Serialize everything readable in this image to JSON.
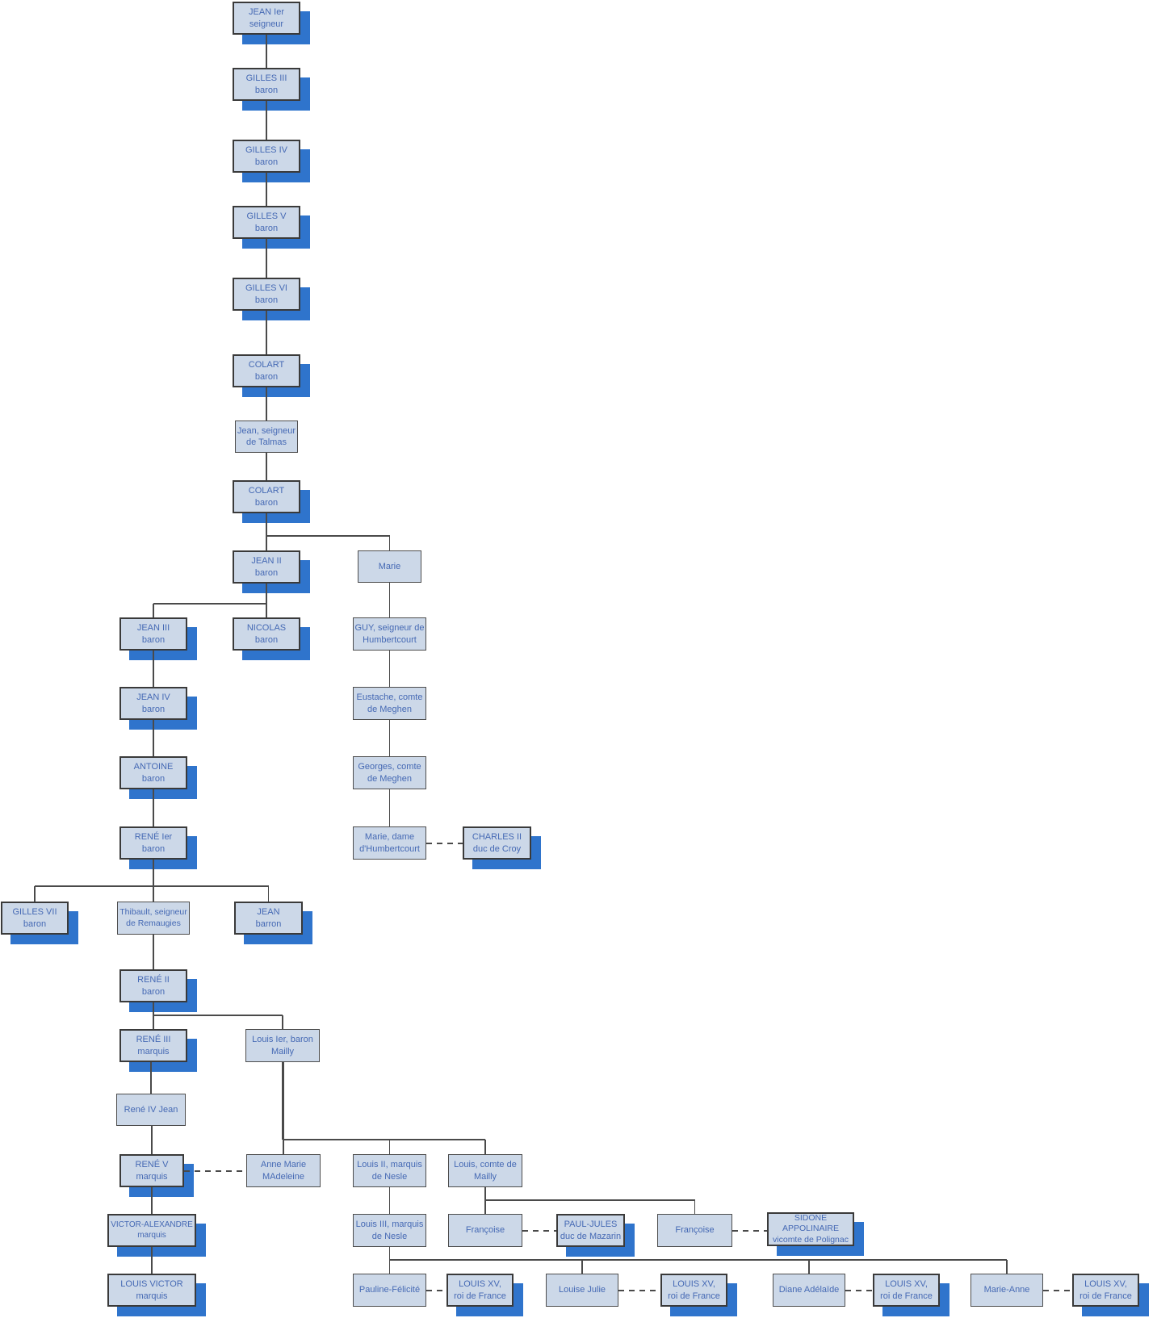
{
  "diagram": {
    "type": "family-tree",
    "colors": {
      "box_fill": "#ccd8e8",
      "box_border": "#3a3a3a",
      "text": "#4569b4",
      "shadow_blue": "#2f74cc",
      "connector": "#4a4a4a",
      "background": "#ffffff"
    },
    "nodes": [
      {
        "id": "jean1",
        "label": "JEAN Ier\nseigneur",
        "shadow": true
      },
      {
        "id": "gilles3",
        "label": "GILLES III\nbaron",
        "shadow": true
      },
      {
        "id": "gilles4",
        "label": "GILLES IV\nbaron",
        "shadow": true
      },
      {
        "id": "gilles5",
        "label": "GILLES V\nbaron",
        "shadow": true
      },
      {
        "id": "gilles6",
        "label": "GILLES VI\nbaron",
        "shadow": true
      },
      {
        "id": "colart1",
        "label": "COLART\nbaron",
        "shadow": true
      },
      {
        "id": "jeantalmas",
        "label": "Jean, seigneur\nde Talmas",
        "shadow": false
      },
      {
        "id": "colart2",
        "label": "COLART\nbaron",
        "shadow": true
      },
      {
        "id": "jean2",
        "label": "JEAN II\nbaron",
        "shadow": true
      },
      {
        "id": "marie",
        "label": "Marie",
        "shadow": false
      },
      {
        "id": "jean3",
        "label": "JEAN III\nbaron",
        "shadow": true
      },
      {
        "id": "nicolas",
        "label": "NICOLAS\nbaron",
        "shadow": true
      },
      {
        "id": "guy",
        "label": "GUY, seigneur de\nHumbertcourt",
        "shadow": false
      },
      {
        "id": "jean4",
        "label": "JEAN IV\nbaron",
        "shadow": true
      },
      {
        "id": "eustache",
        "label": "Eustache, comte\nde Meghen",
        "shadow": false
      },
      {
        "id": "antoine",
        "label": "ANTOINE\nbaron",
        "shadow": true
      },
      {
        "id": "georges",
        "label": "Georges, comte\nde Meghen",
        "shadow": false
      },
      {
        "id": "rene1",
        "label": "RENÉ Ier\nbaron",
        "shadow": true
      },
      {
        "id": "mariedame",
        "label": "Marie, dame\nd'Humbertcourt",
        "shadow": false
      },
      {
        "id": "charles2",
        "label": "CHARLES II\nduc de Croy",
        "shadow": true
      },
      {
        "id": "gilles7",
        "label": "GILLES VII\nbaron",
        "shadow": true
      },
      {
        "id": "thibault",
        "label": "Thibault, seigneur\nde Remaugies",
        "shadow": false
      },
      {
        "id": "jeanbarron",
        "label": "JEAN\nbarron",
        "shadow": true
      },
      {
        "id": "rene2",
        "label": "RENÉ II\nbaron",
        "shadow": true
      },
      {
        "id": "rene3",
        "label": "RENÉ III\nmarquis",
        "shadow": true
      },
      {
        "id": "louis1mailly",
        "label": "Louis Ier, baron\nMailly",
        "shadow": false
      },
      {
        "id": "rene4jean",
        "label": "René IV Jean",
        "shadow": false
      },
      {
        "id": "rene5",
        "label": "RENÉ V\nmarquis",
        "shadow": true
      },
      {
        "id": "annemarie",
        "label": "Anne Marie\nMAdeleine",
        "shadow": false
      },
      {
        "id": "louis2nesle",
        "label": "Louis II,  marquis\nde Nesle",
        "shadow": false
      },
      {
        "id": "louiscomte",
        "label": "Louis, comte de\nMailly",
        "shadow": false
      },
      {
        "id": "victor",
        "label": "VICTOR-ALEXANDRE\nmarquis",
        "shadow": true
      },
      {
        "id": "louis3nesle",
        "label": "Louis III, marquis\nde Nesle",
        "shadow": false
      },
      {
        "id": "francoise1",
        "label": "Françoise",
        "shadow": false
      },
      {
        "id": "pauljules",
        "label": "PAUL-JULES\nduc de Mazarin",
        "shadow": true
      },
      {
        "id": "francoise2",
        "label": "Françoise",
        "shadow": false
      },
      {
        "id": "sidone",
        "label": "SIDONE\nAPPOLINAIRE\nvicomte de Polignac",
        "shadow": true
      },
      {
        "id": "louisvictor",
        "label": "LOUIS VICTOR\nmarquis",
        "shadow": true
      },
      {
        "id": "pauline",
        "label": "Pauline-Félicité",
        "shadow": false
      },
      {
        "id": "louisxv1",
        "label": "LOUIS XV,\nroi de France",
        "shadow": true
      },
      {
        "id": "louisejulie",
        "label": "Louise Julie",
        "shadow": false
      },
      {
        "id": "louisxv2",
        "label": "LOUIS XV,\nroi de France",
        "shadow": true
      },
      {
        "id": "diane",
        "label": "Diane Adélaïde",
        "shadow": false
      },
      {
        "id": "louisxv3",
        "label": "LOUIS XV,\nroi de France",
        "shadow": true
      },
      {
        "id": "marieanne",
        "label": "Marie-Anne",
        "shadow": false
      },
      {
        "id": "louisxv4",
        "label": "LOUIS XV,\nroi de France",
        "shadow": true
      }
    ],
    "edges_parent_child": [
      [
        "jean1",
        "gilles3"
      ],
      [
        "gilles3",
        "gilles4"
      ],
      [
        "gilles4",
        "gilles5"
      ],
      [
        "gilles5",
        "gilles6"
      ],
      [
        "gilles6",
        "colart1"
      ],
      [
        "colart1",
        "jeantalmas"
      ],
      [
        "jeantalmas",
        "colart2"
      ],
      [
        "colart2",
        "jean2"
      ],
      [
        "colart2",
        "marie"
      ],
      [
        "jean2",
        "jean3"
      ],
      [
        "jean2",
        "nicolas"
      ],
      [
        "marie",
        "guy"
      ],
      [
        "jean3",
        "jean4"
      ],
      [
        "jean4",
        "antoine"
      ],
      [
        "antoine",
        "rene1"
      ],
      [
        "guy",
        "eustache"
      ],
      [
        "eustache",
        "georges"
      ],
      [
        "georges",
        "mariedame"
      ],
      [
        "rene1",
        "gilles7"
      ],
      [
        "rene1",
        "thibault"
      ],
      [
        "rene1",
        "jeanbarron"
      ],
      [
        "thibault",
        "rene2"
      ],
      [
        "rene2",
        "rene3"
      ],
      [
        "rene2",
        "louis1mailly"
      ],
      [
        "rene3",
        "rene4jean"
      ],
      [
        "rene4jean",
        "rene5"
      ],
      [
        "louis1mailly",
        "annemarie"
      ],
      [
        "louis1mailly",
        "louis2nesle"
      ],
      [
        "louis1mailly",
        "louiscomte"
      ],
      [
        "rene5",
        "victor"
      ],
      [
        "louis2nesle",
        "louis3nesle"
      ],
      [
        "louiscomte",
        "francoise1"
      ],
      [
        "louiscomte",
        "francoise2"
      ],
      [
        "victor",
        "louisvictor"
      ],
      [
        "louis3nesle",
        "pauline"
      ],
      [
        "louis3nesle",
        "louisejulie"
      ],
      [
        "louis3nesle",
        "diane"
      ],
      [
        "louis3nesle",
        "marieanne"
      ]
    ],
    "edges_spouse_dashed": [
      [
        "mariedame",
        "charles2"
      ],
      [
        "rene5",
        "annemarie"
      ],
      [
        "francoise1",
        "pauljules"
      ],
      [
        "francoise2",
        "sidone"
      ],
      [
        "pauline",
        "louisxv1"
      ],
      [
        "louisejulie",
        "louisxv2"
      ],
      [
        "diane",
        "louisxv3"
      ],
      [
        "marieanne",
        "louisxv4"
      ]
    ]
  }
}
